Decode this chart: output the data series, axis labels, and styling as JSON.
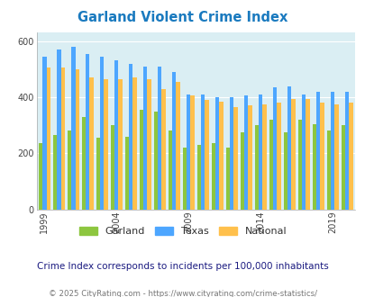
{
  "title": "Garland Violent Crime Index",
  "years": [
    1999,
    2000,
    2001,
    2002,
    2003,
    2004,
    2005,
    2006,
    2007,
    2008,
    2009,
    2010,
    2011,
    2012,
    2013,
    2014,
    2015,
    2016,
    2017,
    2018,
    2019,
    2020
  ],
  "garland": [
    235,
    265,
    280,
    330,
    255,
    300,
    260,
    355,
    350,
    280,
    220,
    230,
    235,
    220,
    275,
    300,
    320,
    275,
    320,
    305,
    280,
    300
  ],
  "texas": [
    545,
    570,
    580,
    555,
    545,
    530,
    520,
    510,
    510,
    490,
    410,
    410,
    400,
    400,
    405,
    410,
    435,
    440,
    410,
    420,
    420,
    420
  ],
  "national": [
    505,
    505,
    500,
    470,
    465,
    465,
    470,
    465,
    430,
    455,
    405,
    390,
    385,
    365,
    370,
    375,
    380,
    395,
    395,
    380,
    375,
    380
  ],
  "garland_color": "#8dc63f",
  "texas_color": "#4da6ff",
  "national_color": "#ffc04c",
  "plot_bg": "#daeef3",
  "xlabel_ticks": [
    1999,
    2004,
    2009,
    2014,
    2019
  ],
  "note": "Crime Index corresponds to incidents per 100,000 inhabitants",
  "copyright": "© 2025 CityRating.com - https://www.cityrating.com/crime-statistics/"
}
